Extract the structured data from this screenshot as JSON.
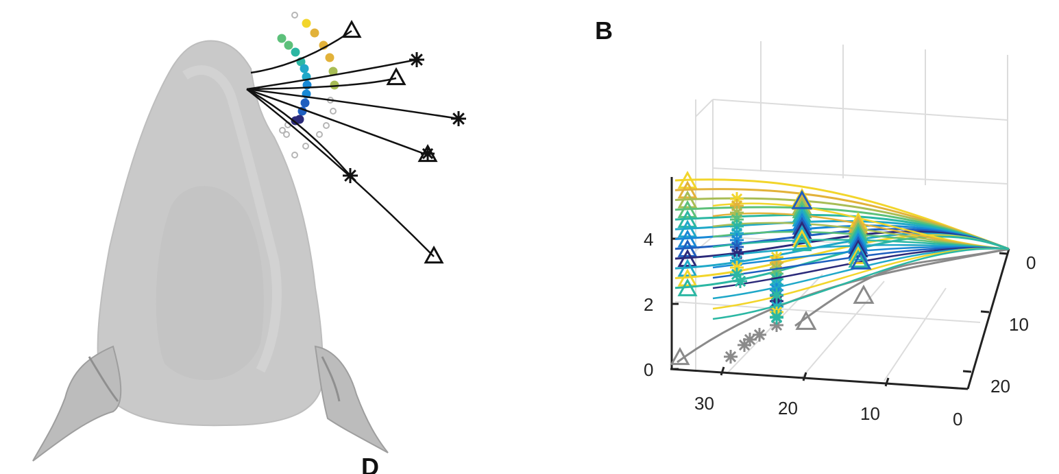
{
  "panel_labels": {
    "right": "B",
    "bottom": "D"
  },
  "colors": {
    "shape_fill": "#c9c9c9",
    "shape_dark": "#a9a9a9",
    "curve_black": "#111111",
    "gray_series": "#8a8a8a",
    "palette": [
      "#2b2a7a",
      "#1f5fbf",
      "#1889d6",
      "#1fa8c8",
      "#2bb7a3",
      "#5cc07a",
      "#a8bd55",
      "#e2b23a",
      "#f2d52b"
    ]
  },
  "chart_data": [
    {
      "type": "line",
      "title": "",
      "markers": [
        "triangle",
        "asterisk"
      ],
      "series": [
        {
          "values": [
            [
              0,
              0
            ],
            [
              4,
              -2
            ],
            [
              8,
              -5
            ],
            [
              12,
              -8
            ]
          ],
          "end": "triangle"
        },
        {
          "values": [
            [
              0,
              0
            ],
            [
              6,
              -1
            ],
            [
              12,
              -3
            ],
            [
              17,
              -4
            ]
          ],
          "end": "asterisk"
        },
        {
          "values": [
            [
              0,
              0
            ],
            [
              6,
              0
            ],
            [
              11,
              0.2
            ],
            [
              15,
              1
            ]
          ],
          "end": "triangle"
        },
        {
          "values": [
            [
              0,
              0
            ],
            [
              7,
              1.5
            ],
            [
              14,
              3
            ],
            [
              21,
              4
            ]
          ],
          "end": "asterisk"
        },
        {
          "values": [
            [
              0,
              0
            ],
            [
              6,
              2.5
            ],
            [
              12,
              5.5
            ],
            [
              18,
              8.5
            ]
          ],
          "end": "triangle"
        },
        {
          "values": [
            [
              0,
              0
            ],
            [
              5,
              3
            ],
            [
              10,
              7
            ],
            [
              14,
              11
            ]
          ],
          "end": "asterisk"
        },
        {
          "values": [
            [
              0,
              0
            ],
            [
              7,
              5
            ],
            [
              13,
              10.5
            ],
            [
              19,
              17.5
            ]
          ],
          "end": "triangle"
        }
      ]
    },
    {
      "type": "line",
      "title": "",
      "projection": "3d",
      "grid": true,
      "xlim": [
        0,
        36
      ],
      "ylim": [
        0,
        25
      ],
      "zlim": [
        0,
        6
      ],
      "x_ticks": [
        "30",
        "20",
        "10",
        "0"
      ],
      "y_ticks": [
        "0",
        "10",
        "20"
      ],
      "z_ticks": [
        "0",
        "2",
        "4"
      ],
      "series_gray": [
        {
          "start_height": 0.3,
          "marker": "triangle"
        },
        {
          "start_height": 2.6,
          "marker": "triangle"
        }
      ],
      "series_colored": [
        {
          "start_height": 6.0,
          "color_index": 8
        },
        {
          "start_height": 5.7,
          "color_index": 7
        },
        {
          "start_height": 5.4,
          "color_index": 6
        },
        {
          "start_height": 5.1,
          "color_index": 5
        },
        {
          "start_height": 4.8,
          "color_index": 4
        },
        {
          "start_height": 4.5,
          "color_index": 3
        },
        {
          "start_height": 4.2,
          "color_index": 2
        },
        {
          "start_height": 3.9,
          "color_index": 1
        },
        {
          "start_height": 3.6,
          "color_index": 0
        },
        {
          "start_height": 3.3,
          "color_index": 3
        },
        {
          "start_height": 3.0,
          "color_index": 8
        },
        {
          "start_height": 2.7,
          "color_index": 4
        }
      ]
    }
  ]
}
